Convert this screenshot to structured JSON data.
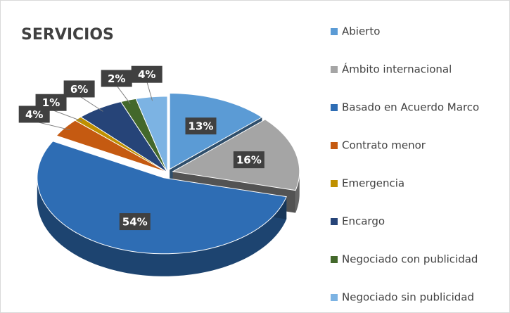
{
  "chart_data": {
    "type": "pie",
    "title": "SERVICIOS",
    "categories": [
      "Abierto",
      "Ámbito internacional",
      "Basado en Acuerdo Marco",
      "Contrato menor",
      "Emergencia",
      "Encargo",
      "Negociado con publicidad",
      "Negociado sin publicidad"
    ],
    "values": [
      13,
      16,
      54,
      4,
      1,
      6,
      2,
      4
    ],
    "value_labels": [
      "13%",
      "16%",
      "54%",
      "4%",
      "1%",
      "6%",
      "2%",
      "4%"
    ],
    "colors": [
      "#5b9bd5",
      "#a5a5a5",
      "#2e6db4",
      "#c55a11",
      "#bf9000",
      "#264478",
      "#43682b",
      "#7cb3e3"
    ],
    "legend": "right"
  }
}
